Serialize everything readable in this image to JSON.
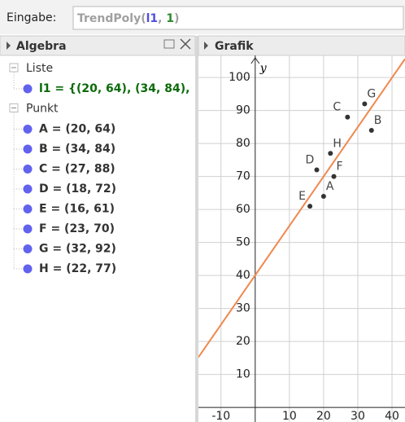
{
  "input": {
    "label": "Eingabe:",
    "command": [
      "TrendPoly(",
      "l1",
      ", ",
      "1",
      ")"
    ]
  },
  "algebra": {
    "title": "Algebra",
    "groups": [
      {
        "name": "Liste",
        "items": [
          "l1 = {(20, 64), (34, 84),"
        ]
      },
      {
        "name": "Punkt",
        "items": [
          "A = (20, 64)",
          "B = (34, 84)",
          "C = (27, 88)",
          "D = (18, 72)",
          "E = (16, 61)",
          "F = (23, 70)",
          "G = (32, 92)",
          "H = (22, 77)"
        ]
      }
    ]
  },
  "graphics": {
    "title": "Grafik",
    "y_axis_label": "y",
    "points": [
      {
        "name": "A",
        "x": 20,
        "y": 64
      },
      {
        "name": "B",
        "x": 34,
        "y": 84
      },
      {
        "name": "C",
        "x": 27,
        "y": 88
      },
      {
        "name": "D",
        "x": 18,
        "y": 72
      },
      {
        "name": "E",
        "x": 16,
        "y": 61
      },
      {
        "name": "F",
        "x": 23,
        "y": 70
      },
      {
        "name": "G",
        "x": 32,
        "y": 92
      },
      {
        "name": "H",
        "x": 22,
        "y": 77
      }
    ],
    "xlim": [
      -16.6,
      43.8
    ],
    "ylim": [
      -4.4,
      106.7
    ],
    "xticks": [
      -10,
      10,
      20,
      30,
      40
    ],
    "yticks": [
      10,
      20,
      30,
      40,
      50,
      60,
      70,
      80,
      90,
      100
    ],
    "line_color": "#f0884e",
    "point_color": "#333333"
  }
}
